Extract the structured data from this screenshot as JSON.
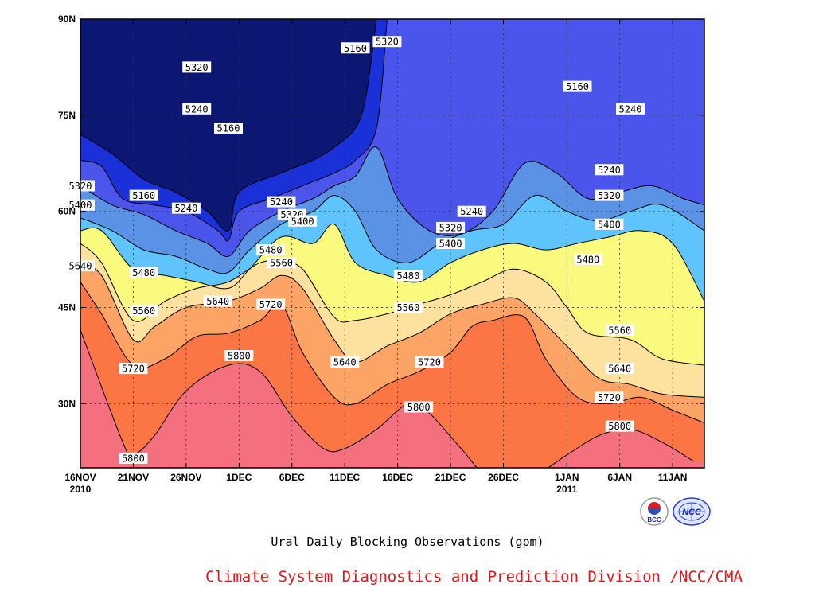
{
  "chart_data": {
    "type": "heatmap",
    "title": "Ural Daily Blocking Observations (gpm)",
    "plot_kind": "filled-contour (time-latitude Hovmoller)",
    "xlabel": "",
    "ylabel": "",
    "x_tick_labels": [
      {
        "date": "2010-11-16",
        "line1": "16NOV",
        "line2": "2010"
      },
      {
        "date": "2010-11-21",
        "line1": "21NOV",
        "line2": ""
      },
      {
        "date": "2010-11-26",
        "line1": "26NOV",
        "line2": ""
      },
      {
        "date": "2010-12-01",
        "line1": "1DEC",
        "line2": ""
      },
      {
        "date": "2010-12-06",
        "line1": "6DEC",
        "line2": ""
      },
      {
        "date": "2010-12-11",
        "line1": "11DEC",
        "line2": ""
      },
      {
        "date": "2010-12-16",
        "line1": "16DEC",
        "line2": ""
      },
      {
        "date": "2010-12-21",
        "line1": "21DEC",
        "line2": ""
      },
      {
        "date": "2010-12-26",
        "line1": "26DEC",
        "line2": ""
      },
      {
        "date": "2011-01-01",
        "line1": "1JAN",
        "line2": "2011"
      },
      {
        "date": "2011-01-06",
        "line1": "6JAN",
        "line2": ""
      },
      {
        "date": "2011-01-11",
        "line1": "11JAN",
        "line2": ""
      }
    ],
    "xlim": [
      "2010-11-16",
      "2011-01-14"
    ],
    "y_ticks": [
      {
        "value": 30,
        "label": "30N"
      },
      {
        "value": 45,
        "label": "45N"
      },
      {
        "value": 60,
        "label": "60N"
      },
      {
        "value": 75,
        "label": "75N"
      },
      {
        "value": 90,
        "label": "90N"
      }
    ],
    "ylim": [
      20,
      90
    ],
    "grid": true,
    "contour_levels": [
      5160,
      5240,
      5320,
      5400,
      5480,
      5560,
      5640,
      5720,
      5800
    ],
    "fill_colors": [
      "#0c1673",
      "#1a30d8",
      "#4b55ec",
      "#5a93e6",
      "#5fc4fb",
      "#fafb7e",
      "#fde19f",
      "#fca466",
      "#fb7644",
      "#f4707e"
    ],
    "contours": [
      {
        "level": 5800,
        "points": [
          [
            "2010-11-16",
            41.5
          ],
          [
            "2010-11-20",
            24
          ],
          [
            "2010-11-21",
            22
          ],
          [
            "2010-11-23",
            25
          ],
          [
            "2010-11-26",
            32
          ],
          [
            "2010-11-30",
            36
          ],
          [
            "2010-12-03",
            35
          ],
          [
            "2010-12-06",
            28
          ],
          [
            "2010-12-09",
            23
          ],
          [
            "2010-12-11",
            23
          ],
          [
            "2010-12-14",
            26
          ],
          [
            "2010-12-17",
            30
          ],
          [
            "2010-12-19",
            28.5
          ],
          [
            "2010-12-22",
            23
          ],
          [
            "2010-12-25",
            18
          ],
          [
            "2010-12-29",
            19
          ],
          [
            "2011-01-01",
            22
          ],
          [
            "2011-01-04",
            25
          ],
          [
            "2011-01-07",
            26
          ],
          [
            "2011-01-10",
            24
          ],
          [
            "2011-01-13",
            21
          ]
        ]
      },
      {
        "level": 5720,
        "points": [
          [
            "2010-11-16",
            49
          ],
          [
            "2010-11-18",
            44
          ],
          [
            "2010-11-21",
            36
          ],
          [
            "2010-11-24",
            37
          ],
          [
            "2010-11-27",
            40.5
          ],
          [
            "2010-11-30",
            41
          ],
          [
            "2010-12-03",
            43
          ],
          [
            "2010-12-05",
            45.5
          ],
          [
            "2010-12-07",
            38
          ],
          [
            "2010-12-10",
            31
          ],
          [
            "2010-12-12",
            30
          ],
          [
            "2010-12-15",
            33
          ],
          [
            "2010-12-18",
            35
          ],
          [
            "2010-12-21",
            38
          ],
          [
            "2010-12-23",
            42
          ],
          [
            "2010-12-25",
            43
          ],
          [
            "2010-12-28",
            43.5
          ],
          [
            "2010-12-30",
            37
          ],
          [
            "2011-01-02",
            31
          ],
          [
            "2011-01-05",
            30
          ],
          [
            "2011-01-08",
            31
          ],
          [
            "2011-01-11",
            29
          ],
          [
            "2011-01-14",
            27
          ]
        ]
      },
      {
        "level": 5640,
        "points": [
          [
            "2010-11-16",
            51.5
          ],
          [
            "2010-11-18",
            50
          ],
          [
            "2010-11-21",
            40
          ],
          [
            "2010-11-23",
            42
          ],
          [
            "2010-11-26",
            45
          ],
          [
            "2010-11-30",
            46
          ],
          [
            "2010-12-03",
            48
          ],
          [
            "2010-12-05",
            50
          ],
          [
            "2010-12-07",
            48
          ],
          [
            "2010-12-10",
            40
          ],
          [
            "2010-12-12",
            36.5
          ],
          [
            "2010-12-15",
            39
          ],
          [
            "2010-12-18",
            41
          ],
          [
            "2010-12-21",
            44
          ],
          [
            "2010-12-24",
            45.5
          ],
          [
            "2010-12-27",
            46.5
          ],
          [
            "2010-12-29",
            44
          ],
          [
            "2011-01-01",
            39
          ],
          [
            "2011-01-04",
            34
          ],
          [
            "2011-01-07",
            33
          ],
          [
            "2011-01-10",
            31.5
          ],
          [
            "2011-01-14",
            31
          ]
        ]
      },
      {
        "level": 5560,
        "points": [
          [
            "2010-11-16",
            55
          ],
          [
            "2010-11-18",
            52
          ],
          [
            "2010-11-21",
            43
          ],
          [
            "2010-11-24",
            46
          ],
          [
            "2010-11-27",
            48
          ],
          [
            "2010-11-30",
            49
          ],
          [
            "2010-12-03",
            52
          ],
          [
            "2010-12-05",
            52
          ],
          [
            "2010-12-07",
            51
          ],
          [
            "2010-12-10",
            43.5
          ],
          [
            "2010-12-12",
            43
          ],
          [
            "2010-12-15",
            44
          ],
          [
            "2010-12-18",
            45.5
          ],
          [
            "2010-12-21",
            47
          ],
          [
            "2010-12-24",
            49
          ],
          [
            "2010-12-27",
            51
          ],
          [
            "2010-12-30",
            49
          ],
          [
            "2011-01-01",
            45
          ],
          [
            "2011-01-03",
            41
          ],
          [
            "2011-01-07",
            40
          ],
          [
            "2011-01-10",
            37
          ],
          [
            "2011-01-14",
            36
          ]
        ]
      },
      {
        "level": 5480,
        "points": [
          [
            "2010-11-16",
            57
          ],
          [
            "2010-11-18",
            57
          ],
          [
            "2010-11-21",
            51
          ],
          [
            "2010-11-24",
            50
          ],
          [
            "2010-11-27",
            49
          ],
          [
            "2010-11-30",
            48
          ],
          [
            "2010-12-02",
            51
          ],
          [
            "2010-12-05",
            56
          ],
          [
            "2010-12-08",
            55
          ],
          [
            "2010-12-10",
            58
          ],
          [
            "2010-12-12",
            52
          ],
          [
            "2010-12-15",
            50
          ],
          [
            "2010-12-18",
            49
          ],
          [
            "2010-12-21",
            52
          ],
          [
            "2010-12-24",
            54
          ],
          [
            "2010-12-27",
            55
          ],
          [
            "2010-12-30",
            54
          ],
          [
            "2011-01-02",
            55
          ],
          [
            "2011-01-05",
            56
          ],
          [
            "2011-01-08",
            57
          ],
          [
            "2011-01-11",
            55
          ],
          [
            "2011-01-14",
            46
          ]
        ]
      },
      {
        "level": 5400,
        "points": [
          [
            "2010-11-16",
            59
          ],
          [
            "2010-11-19",
            57
          ],
          [
            "2010-11-22",
            54
          ],
          [
            "2010-11-25",
            53
          ],
          [
            "2010-11-28",
            51
          ],
          [
            "2010-11-30",
            50.5
          ],
          [
            "2010-12-02",
            54
          ],
          [
            "2010-12-05",
            58
          ],
          [
            "2010-12-08",
            60
          ],
          [
            "2010-12-10",
            62.5
          ],
          [
            "2010-12-12",
            60
          ],
          [
            "2010-12-14",
            54
          ],
          [
            "2010-12-17",
            52
          ],
          [
            "2010-12-20",
            55
          ],
          [
            "2010-12-23",
            57
          ],
          [
            "2010-12-26",
            58
          ],
          [
            "2010-12-29",
            62.5
          ],
          [
            "2011-01-01",
            60
          ],
          [
            "2011-01-04",
            58.5
          ],
          [
            "2011-01-07",
            60
          ],
          [
            "2011-01-10",
            61
          ],
          [
            "2011-01-14",
            57
          ]
        ]
      },
      {
        "level": 5320,
        "points": [
          [
            "2010-11-16",
            64
          ],
          [
            "2010-11-19",
            61
          ],
          [
            "2010-11-22",
            59.5
          ],
          [
            "2010-11-25",
            57
          ],
          [
            "2010-11-28",
            55
          ],
          [
            "2010-11-30",
            53
          ],
          [
            "2010-12-02",
            57
          ],
          [
            "2010-12-05",
            60
          ],
          [
            "2010-12-08",
            62
          ],
          [
            "2010-12-10",
            64
          ],
          [
            "2010-12-12",
            65.5
          ],
          [
            "2010-12-14",
            70
          ],
          [
            "2010-12-16",
            62
          ],
          [
            "2010-12-19",
            57
          ],
          [
            "2010-12-22",
            56.5
          ],
          [
            "2010-12-25",
            60
          ],
          [
            "2010-12-28",
            67.5
          ],
          [
            "2010-12-31",
            66
          ],
          [
            "2011-01-03",
            62
          ],
          [
            "2011-01-06",
            63
          ],
          [
            "2011-01-09",
            64
          ],
          [
            "2011-01-12",
            62
          ],
          [
            "2011-01-14",
            61
          ]
        ]
      },
      {
        "level": 5240,
        "points": [
          [
            "2010-11-16",
            68
          ],
          [
            "2010-11-18",
            67
          ],
          [
            "2010-11-20",
            62
          ],
          [
            "2010-11-23",
            61
          ],
          [
            "2010-11-26",
            60
          ],
          [
            "2010-11-29",
            57
          ],
          [
            "2010-11-30",
            55.5
          ],
          [
            "2010-12-01",
            60
          ],
          [
            "2010-12-04",
            62
          ],
          [
            "2010-12-07",
            64
          ],
          [
            "2010-12-10",
            66
          ],
          [
            "2010-12-12",
            68
          ],
          [
            "2010-12-14",
            73
          ],
          [
            "2010-12-15",
            90
          ]
        ]
      },
      {
        "level": 5160,
        "points": [
          [
            "2010-11-16",
            72
          ],
          [
            "2010-11-19",
            69
          ],
          [
            "2010-11-22",
            65
          ],
          [
            "2010-11-25",
            63
          ],
          [
            "2010-11-28",
            60
          ],
          [
            "2010-11-30",
            57
          ],
          [
            "2010-12-01",
            63
          ],
          [
            "2010-12-05",
            66
          ],
          [
            "2010-12-08",
            68
          ],
          [
            "2010-12-10",
            70
          ],
          [
            "2010-12-12",
            73
          ],
          [
            "2010-12-13",
            78
          ],
          [
            "2010-12-14",
            90
          ]
        ]
      }
    ],
    "contour_labels": [
      {
        "value": "5320",
        "date": "2010-11-16",
        "lat": 64
      },
      {
        "value": "5400",
        "date": "2010-11-16",
        "lat": 61
      },
      {
        "value": "5640",
        "date": "2010-11-16",
        "lat": 51.5
      },
      {
        "value": "5160",
        "date": "2010-11-22",
        "lat": 62.5
      },
      {
        "value": "5480",
        "date": "2010-11-22",
        "lat": 50.5
      },
      {
        "value": "5560",
        "date": "2010-11-22",
        "lat": 44.5
      },
      {
        "value": "5720",
        "date": "2010-11-21",
        "lat": 35.5
      },
      {
        "value": "5800",
        "date": "2010-11-21",
        "lat": 21.5
      },
      {
        "value": "5320",
        "date": "2010-11-27",
        "lat": 82.5
      },
      {
        "value": "5240",
        "date": "2010-11-27",
        "lat": 76
      },
      {
        "value": "5240",
        "date": "2010-11-26",
        "lat": 60.5
      },
      {
        "value": "5640",
        "date": "2010-11-29",
        "lat": 46
      },
      {
        "value": "5160",
        "date": "2010-11-30",
        "lat": 73
      },
      {
        "value": "5800",
        "date": "2010-12-01",
        "lat": 37.5
      },
      {
        "value": "5720",
        "date": "2010-12-04",
        "lat": 45.5
      },
      {
        "value": "5240",
        "date": "2010-12-05",
        "lat": 61.5
      },
      {
        "value": "5320",
        "date": "2010-12-06",
        "lat": 59.5
      },
      {
        "value": "5400",
        "date": "2010-12-07",
        "lat": 58.5
      },
      {
        "value": "5480",
        "date": "2010-12-04",
        "lat": 54
      },
      {
        "value": "5560",
        "date": "2010-12-05",
        "lat": 52
      },
      {
        "value": "5160",
        "date": "2010-12-12",
        "lat": 85.5
      },
      {
        "value": "5320",
        "date": "2010-12-15",
        "lat": 86.5
      },
      {
        "value": "5640",
        "date": "2010-12-11",
        "lat": 36.5
      },
      {
        "value": "5480",
        "date": "2010-12-17",
        "lat": 50
      },
      {
        "value": "5560",
        "date": "2010-12-17",
        "lat": 45
      },
      {
        "value": "5720",
        "date": "2010-12-19",
        "lat": 36.5
      },
      {
        "value": "5800",
        "date": "2010-12-18",
        "lat": 29.5
      },
      {
        "value": "5240",
        "date": "2010-12-23",
        "lat": 60
      },
      {
        "value": "5320",
        "date": "2010-12-21",
        "lat": 57.5
      },
      {
        "value": "5400",
        "date": "2010-12-21",
        "lat": 55
      },
      {
        "value": "5160",
        "date": "2011-01-02",
        "lat": 79.5
      },
      {
        "value": "5240",
        "date": "2011-01-07",
        "lat": 76
      },
      {
        "value": "5240",
        "date": "2011-01-05",
        "lat": 66.5
      },
      {
        "value": "5320",
        "date": "2011-01-05",
        "lat": 62.5
      },
      {
        "value": "5400",
        "date": "2011-01-05",
        "lat": 58
      },
      {
        "value": "5480",
        "date": "2011-01-03",
        "lat": 52.5
      },
      {
        "value": "5560",
        "date": "2011-01-06",
        "lat": 41.5
      },
      {
        "value": "5640",
        "date": "2011-01-06",
        "lat": 35.5
      },
      {
        "value": "5720",
        "date": "2011-01-05",
        "lat": 31
      },
      {
        "value": "5800",
        "date": "2011-01-06",
        "lat": 26.5
      }
    ]
  },
  "footer": {
    "credit": "Climate System Diagnostics and Prediction Division /NCC/CMA",
    "logo_left_text": "BCC",
    "logo_right_text": "NCC"
  }
}
